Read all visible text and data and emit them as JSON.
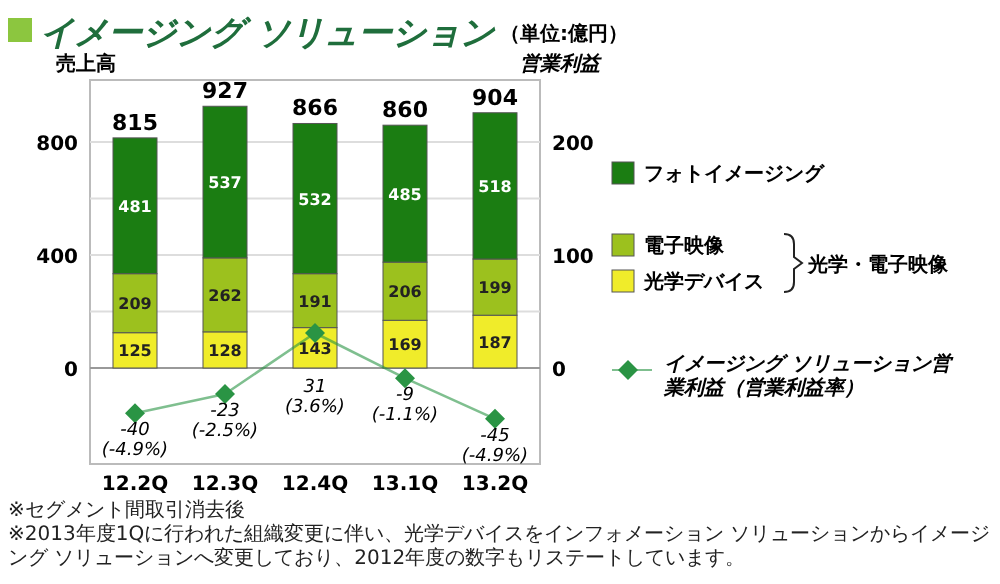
{
  "chart_data": {
    "type": "bar",
    "title": "イメージング ソリューション",
    "ylabel": "売上高",
    "y2label": "営業利益",
    "annotations": [
      "（単位:億円）",
      "光学・電子映像",
      "※セグメント間取引消去後",
      "※2013年度1Qに行われた組織変更に伴い、光学デバイスをインフォメーション ソリューションからイメージング ソリューションへ変更しており、2012年度の数字もリステートしています。"
    ],
    "categories": [
      "12.2Q",
      "12.3Q",
      "12.4Q",
      "13.1Q",
      "13.2Q"
    ],
    "stacked": true,
    "data_labels": true,
    "totals": [
      "815",
      "927",
      "866",
      "860",
      "904"
    ],
    "ylim": [
      -340,
      1020
    ],
    "yticks": [
      0,
      {
        "value": 200,
        "label": null
      },
      400,
      {
        "value": 600,
        "label": null
      },
      800
    ],
    "y2lim": [
      -85,
      255
    ],
    "y2ticks": [
      0,
      100,
      200
    ],
    "grid": "y",
    "legend": "right",
    "series": [
      {
        "name": "光学デバイス",
        "color": "#f0ec2a",
        "values": [
          125,
          128,
          143,
          169,
          187
        ]
      },
      {
        "name": "電子映像",
        "color": "#9cc11e",
        "values": [
          209,
          262,
          191,
          206,
          199
        ]
      },
      {
        "name": "フォトイメージング",
        "color": "#1b7d12",
        "values": [
          481,
          537,
          532,
          485,
          518
        ]
      },
      {
        "name": "イメージング ソリューション営業利益（営業利益率）",
        "type": "line",
        "axis": "y2",
        "color": "#2a9444",
        "marker": "diamond",
        "line_style": "solid",
        "values": [
          -40,
          -23,
          31,
          -9,
          -45
        ],
        "value_labels": [
          "-40\n(-4.9%)",
          "-23\n(-2.5%)",
          "31\n(3.6%)",
          "-9\n(-1.1%)",
          "-45\n(-4.9%)"
        ]
      }
    ]
  }
}
